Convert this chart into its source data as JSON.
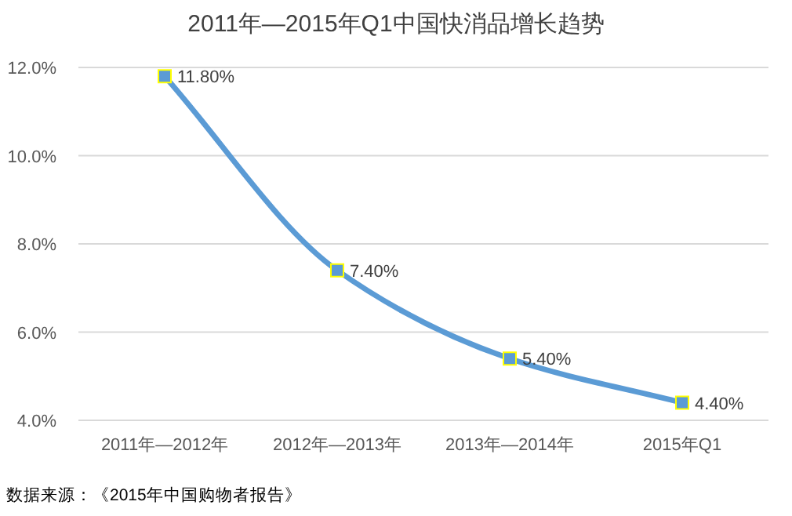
{
  "chart_data": {
    "type": "line",
    "title": "2011年—2015年Q1中国快消品增长趋势",
    "categories": [
      "2011年—2012年",
      "2012年—2013年",
      "2013年—2014年",
      "2015年Q1"
    ],
    "series": [
      {
        "color": "#5b9bd5",
        "values": [
          11.8,
          7.4,
          5.4,
          4.4
        ],
        "value_labels": [
          "11.80%",
          "7.40%",
          "5.40%",
          "4.40%"
        ]
      }
    ],
    "ylim": [
      4,
      12
    ],
    "yticks": [
      {
        "value": 4,
        "label": "4.0%"
      },
      {
        "value": 6,
        "label": "6.0%"
      },
      {
        "value": 8,
        "label": "8.0%"
      },
      {
        "value": 10,
        "label": "10.0%"
      },
      {
        "value": 12,
        "label": "12.0%"
      }
    ],
    "grid": "y",
    "marker": "square",
    "line_style": "solid",
    "annotations": [
      "数据来源：《2015年中国购物者报告》"
    ]
  }
}
